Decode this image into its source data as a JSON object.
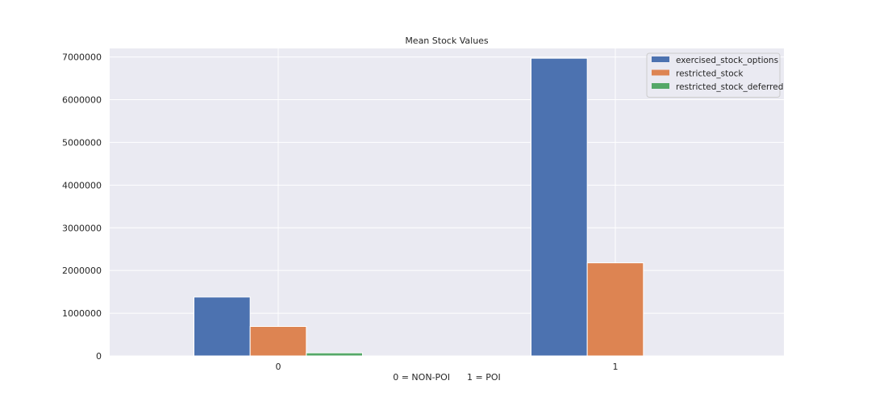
{
  "chart_data": {
    "type": "bar",
    "title": "Mean Stock Values",
    "xlabel": "0 = NON-POI      1 = POI",
    "ylabel": "",
    "categories": [
      "0",
      "1"
    ],
    "ylim": [
      0,
      7200000
    ],
    "yticks": [
      0,
      1000000,
      2000000,
      3000000,
      4000000,
      5000000,
      6000000,
      7000000
    ],
    "grid": true,
    "legend_position": "top-right",
    "series": [
      {
        "name": "exercised_stock_options",
        "color": "#4c72b0",
        "values": [
          1380000,
          6970000
        ]
      },
      {
        "name": "restricted_stock",
        "color": "#dd8452",
        "values": [
          690000,
          2180000
        ]
      },
      {
        "name": "restricted_stock_deferred",
        "color": "#55a868",
        "values": [
          72000,
          0
        ]
      }
    ],
    "background_color": "#eaeaf2",
    "grid_color": "#ffffff"
  }
}
